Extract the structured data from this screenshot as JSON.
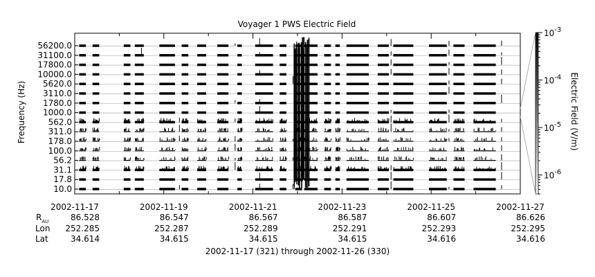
{
  "chart_data": {
    "type": "heatmap",
    "title": "Voyager 1 PWS Electric Field",
    "ylabel": "Frequency (Hz)",
    "colorbar_label": "Electric Field (V/m)",
    "colorbar_scale": "log",
    "colorbar_range": [
      4e-07,
      0.001
    ],
    "colorbar_ticks": [
      {
        "value": 0.001,
        "base": "10",
        "exp": "-3"
      },
      {
        "value": 0.0001,
        "base": "10",
        "exp": "-4"
      },
      {
        "value": 1e-05,
        "base": "10",
        "exp": "-5"
      },
      {
        "value": 1e-06,
        "base": "10",
        "exp": "-6"
      }
    ],
    "colorbar_colors": [
      "#000000",
      "#ffffff"
    ],
    "y_tick_labels": [
      "56200.0",
      "31100.0",
      "17800.0",
      "10000.0",
      "5620.0",
      "3110.0",
      "1780.0",
      "1000.0",
      "562.0",
      "311.0",
      "178.0",
      "100.0",
      "56.2",
      "31.1",
      "17.8",
      "10.0"
    ],
    "channels_hz": [
      56200.0,
      31100.0,
      17800.0,
      10000.0,
      5620.0,
      3110.0,
      1780.0,
      1000.0,
      562.0,
      311.0,
      178.0,
      100.0,
      56.2,
      31.1,
      17.8,
      10.0
    ],
    "x_range_days": [
      0,
      10
    ],
    "x_tick_labels": [
      "2002-11-17",
      "2002-11-19",
      "2002-11-21",
      "2002-11-23",
      "2002-11-25",
      "2002-11-27"
    ],
    "x_tick_days": [
      0,
      2,
      4,
      6,
      8,
      10
    ],
    "x_minor_tick_days": [
      1,
      3,
      5,
      7,
      9
    ],
    "ephemeris": {
      "row_labels": [
        "R",
        "Lon",
        "Lat"
      ],
      "r_subscript": "AU",
      "R": [
        "86.528",
        "86.547",
        "86.567",
        "86.587",
        "86.607",
        "86.626"
      ],
      "Lon": [
        "252.285",
        "252.287",
        "252.289",
        "252.291",
        "252.293",
        "252.295"
      ],
      "Lat": [
        "34.614",
        "34.615",
        "34.615",
        "34.615",
        "34.616",
        "34.616"
      ]
    },
    "date_range_caption": "2002-11-17 (321) through 2002-11-26 (330)",
    "data_segments_days": [
      [
        0.1,
        0.25
      ],
      [
        0.4,
        0.55
      ],
      [
        1.1,
        1.25
      ],
      [
        1.35,
        1.55
      ],
      [
        1.9,
        2.25
      ],
      [
        2.4,
        2.55
      ],
      [
        2.75,
        2.95
      ],
      [
        3.2,
        3.45
      ],
      [
        3.65,
        3.75
      ],
      [
        4.05,
        4.45
      ],
      [
        4.6,
        4.75
      ],
      [
        4.95,
        5.1
      ],
      [
        5.15,
        5.45
      ],
      [
        5.6,
        5.75
      ],
      [
        5.85,
        5.95
      ],
      [
        6.1,
        6.6
      ],
      [
        6.8,
        7.05
      ],
      [
        7.15,
        7.6
      ],
      [
        7.95,
        8.35
      ],
      [
        8.5,
        8.75
      ],
      [
        8.95,
        9.45
      ]
    ],
    "spike_events_days": [
      [
        5.1,
        5.55
      ],
      [
        1.5,
        0.3
      ],
      [
        2.35,
        0.45
      ],
      [
        4.15,
        0.4
      ],
      [
        7.1,
        0.55
      ],
      [
        8.4,
        0.6
      ],
      [
        9.58,
        0.75
      ],
      [
        3.6,
        0.35
      ],
      [
        4.9,
        0.3
      ]
    ]
  }
}
